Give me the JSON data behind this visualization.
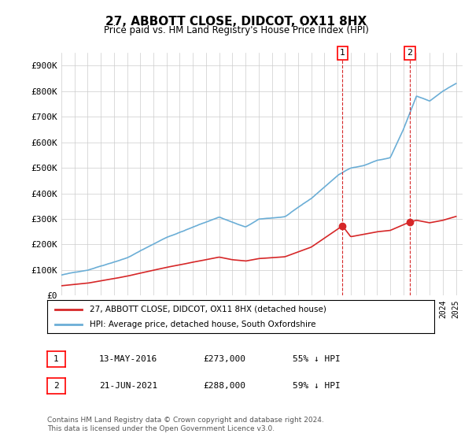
{
  "title": "27, ABBOTT CLOSE, DIDCOT, OX11 8HX",
  "subtitle": "Price paid vs. HM Land Registry's House Price Index (HPI)",
  "ylabel_ticks": [
    "£0",
    "£100K",
    "£200K",
    "£300K",
    "£400K",
    "£500K",
    "£600K",
    "£700K",
    "£800K",
    "£900K"
  ],
  "ytick_values": [
    0,
    100000,
    200000,
    300000,
    400000,
    500000,
    600000,
    700000,
    800000,
    900000
  ],
  "ylim": [
    0,
    950000
  ],
  "xlim_start": 1995.0,
  "xlim_end": 2025.5,
  "hpi_color": "#6baed6",
  "price_color": "#d62728",
  "marker1_date": 2016.37,
  "marker1_price": 273000,
  "marker2_date": 2021.47,
  "marker2_price": 288000,
  "legend_label1": "27, ABBOTT CLOSE, DIDCOT, OX11 8HX (detached house)",
  "legend_label2": "HPI: Average price, detached house, South Oxfordshire",
  "annotation1_label": "13-MAY-2016",
  "annotation1_price": "£273,000",
  "annotation1_pct": "55% ↓ HPI",
  "annotation2_label": "21-JUN-2021",
  "annotation2_price": "£288,000",
  "annotation2_pct": "59% ↓ HPI",
  "footer": "Contains HM Land Registry data © Crown copyright and database right 2024.\nThis data is licensed under the Open Government Licence v3.0.",
  "background_color": "#ffffff",
  "grid_color": "#cccccc"
}
